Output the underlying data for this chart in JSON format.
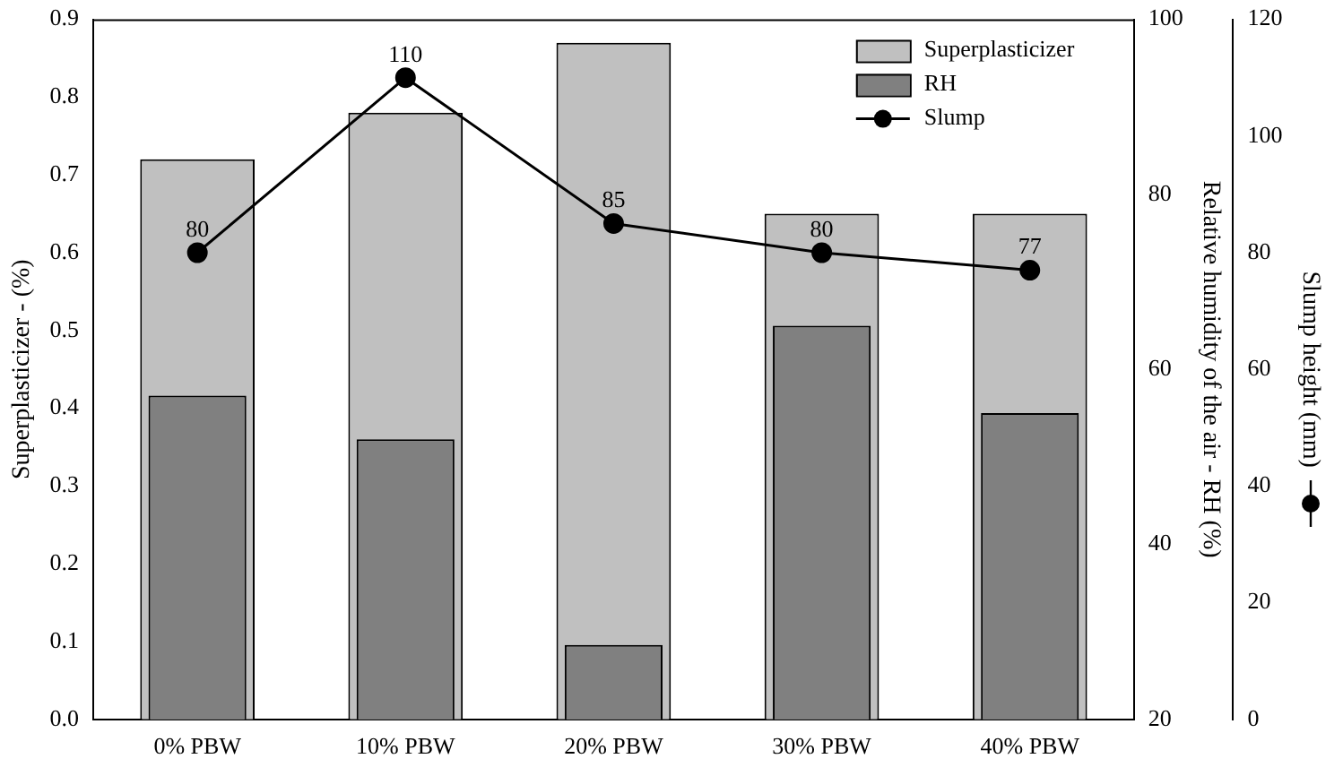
{
  "chart_data": {
    "type": "bar",
    "categories": [
      "0% PBW",
      "10% PBW",
      "20% PBW",
      "30% PBW",
      "40% PBW"
    ],
    "series": [
      {
        "name": "Superplasticizer",
        "color": "#c0c0c0",
        "values": [
          0.72,
          0.78,
          0.87,
          0.65,
          0.65
        ]
      },
      {
        "name": "RH",
        "color": "#808080",
        "axis": "y2",
        "values": [
          57,
          52,
          28.5,
          65,
          55
        ]
      },
      {
        "name": "Slump",
        "type": "line",
        "color": "#000000",
        "axis": "y3",
        "values": [
          80,
          110,
          85,
          80,
          77
        ],
        "value_labels": [
          "80",
          "110",
          "85",
          "80",
          "77"
        ]
      }
    ],
    "ylabel": "Superplasticizer - (%)",
    "y2label": "Relative humidity of the air - RH (%)",
    "y3label": "Slump height (mm)",
    "ylim": [
      0,
      0.9
    ],
    "yticks": [
      {
        "value": 0,
        "label": "0.0"
      },
      {
        "value": 0.1,
        "label": "0.1"
      },
      {
        "value": 0.2,
        "label": "0.2"
      },
      {
        "value": 0.3,
        "label": "0.3"
      },
      {
        "value": 0.4,
        "label": "0.4"
      },
      {
        "value": 0.5,
        "label": "0.5"
      },
      {
        "value": 0.6,
        "label": "0.6"
      },
      {
        "value": 0.7,
        "label": "0.7"
      },
      {
        "value": 0.8,
        "label": "0.8"
      },
      {
        "value": 0.9,
        "label": "0.9"
      }
    ],
    "y2lim": [
      20,
      100
    ],
    "y2ticks": [
      20,
      40,
      60,
      80,
      100
    ],
    "y3lim": [
      0,
      120
    ],
    "y3ticks": [
      0,
      20,
      40,
      60,
      80,
      100,
      120
    ],
    "legend": "top right",
    "marker": "circle",
    "grid": false
  }
}
